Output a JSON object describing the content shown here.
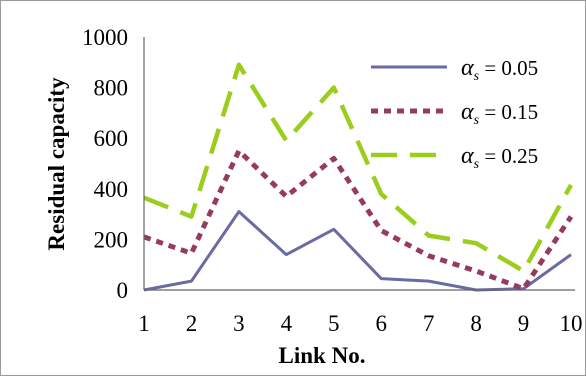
{
  "chart_data": {
    "type": "line",
    "title": "",
    "xlabel": "Link No.",
    "ylabel": "Residual capacity",
    "x": [
      1,
      2,
      3,
      4,
      5,
      6,
      7,
      8,
      9,
      10
    ],
    "ylim": [
      0,
      1000
    ],
    "yticks": [
      0,
      200,
      400,
      600,
      800,
      1000
    ],
    "grid": false,
    "legend_position": "top-right",
    "series": [
      {
        "name": "α_s = 0.05",
        "legend_symbol": "α",
        "legend_subscript": "s",
        "legend_value": " = 0.05",
        "style": "solid",
        "color": "#6b6ba3",
        "values": [
          0,
          35,
          310,
          140,
          240,
          45,
          35,
          0,
          5,
          140
        ]
      },
      {
        "name": "α_s = 0.15",
        "legend_symbol": "α",
        "legend_subscript": "s",
        "legend_value": " = 0.15",
        "style": "dotted",
        "color": "#943a63",
        "values": [
          210,
          145,
          550,
          370,
          520,
          235,
          135,
          75,
          5,
          290
        ]
      },
      {
        "name": "α_s = 0.25",
        "legend_symbol": "α",
        "legend_subscript": "s",
        "legend_value": " = 0.25",
        "style": "dashed",
        "color": "#9acd1c",
        "values": [
          365,
          290,
          890,
          590,
          800,
          380,
          215,
          185,
          75,
          415
        ]
      }
    ]
  }
}
